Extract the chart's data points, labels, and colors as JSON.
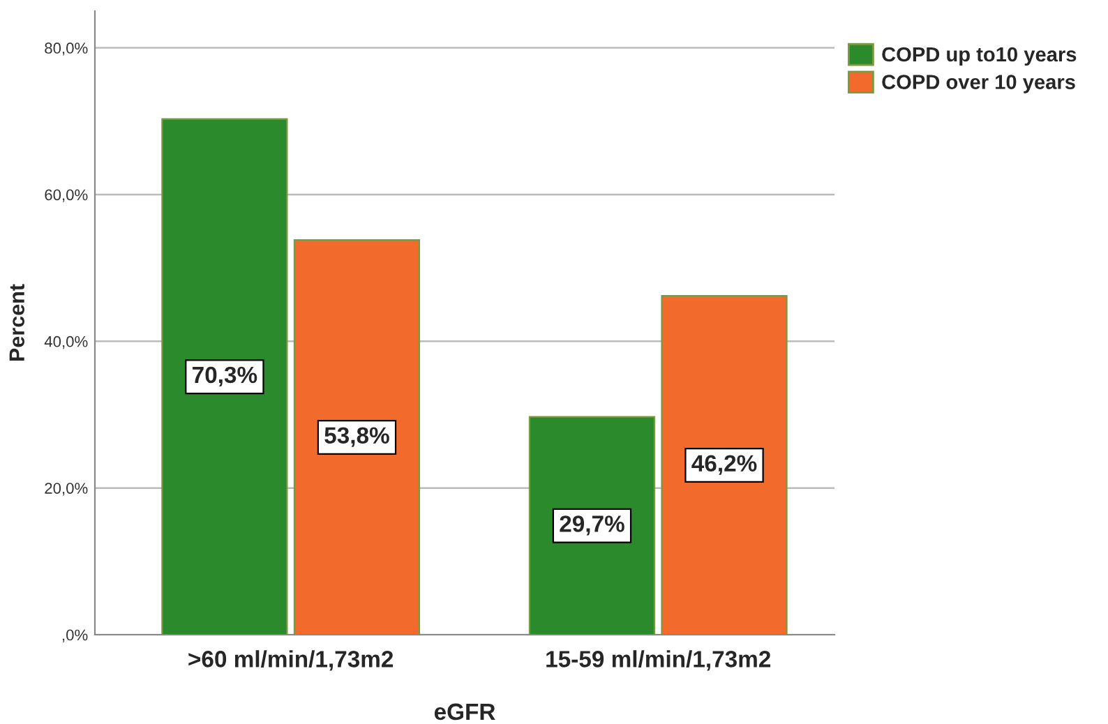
{
  "chart_data": {
    "type": "bar",
    "xlabel": "eGFR",
    "ylabel": "Percent",
    "categories": [
      ">60 ml/min/1,73m2",
      "15-59 ml/min/1,73m2"
    ],
    "series": [
      {
        "name": "COPD up to10 years",
        "color": "#2b8a2b",
        "values": [
          70.3,
          29.7
        ],
        "value_labels": [
          "70,3%",
          "29,7%"
        ]
      },
      {
        "name": "COPD over 10 years",
        "color": "#f26a2c",
        "values": [
          53.8,
          46.2
        ],
        "value_labels": [
          "53,8%",
          "46,2%"
        ]
      }
    ],
    "ylim": [
      0,
      85
    ],
    "yticks": [
      {
        "value": 0,
        "label": ",0%"
      },
      {
        "value": 20,
        "label": "20,0%"
      },
      {
        "value": 40,
        "label": "40,0%"
      },
      {
        "value": 60,
        "label": "60,0%"
      },
      {
        "value": 80,
        "label": "80,0%"
      }
    ],
    "grid": "y",
    "legend": "top right"
  }
}
